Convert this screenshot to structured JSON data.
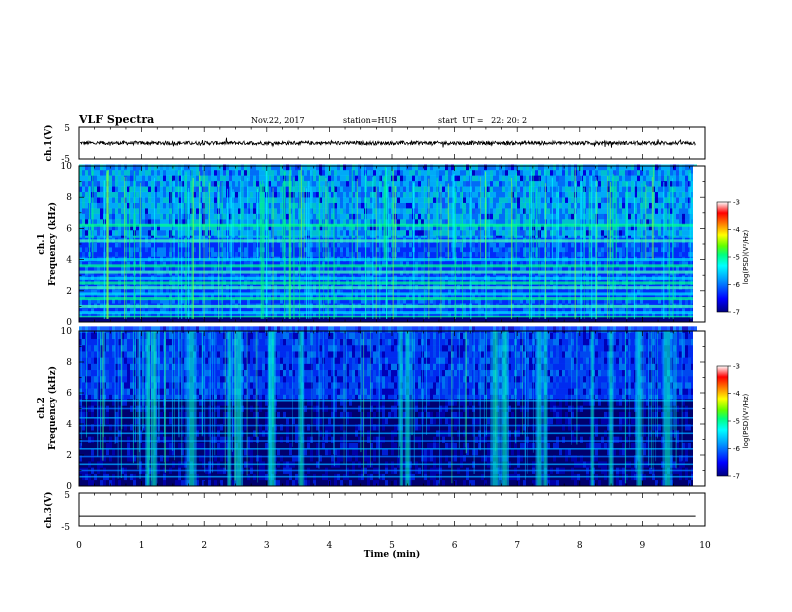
{
  "header": {
    "title": "VLF Spectra",
    "date": "Nov.22, 2017",
    "station": "station=HUS",
    "start": "start  UT =   22: 20: 2"
  },
  "chart_data": {
    "type": "heatmap",
    "x_axis": {
      "label": "Time  (min)",
      "range": [
        0,
        10
      ],
      "ticks": [
        0,
        1,
        2,
        3,
        4,
        5,
        6,
        7,
        8,
        9,
        10
      ],
      "data_end": 9.85
    },
    "panels": [
      {
        "id": "ch1-waveform",
        "type": "line",
        "ylabel": "ch.1(V)",
        "ylim": [
          -5,
          5
        ],
        "yticks": [
          "5",
          "-5"
        ],
        "baseline": 0,
        "amplitude": 0.6
      },
      {
        "id": "ch1-spectrogram",
        "type": "heatmap",
        "ylabel_top": "ch.1",
        "ylabel": "Frequency  (kHz)",
        "ylim": [
          0,
          10
        ],
        "yticks": [
          "0",
          "2",
          "4",
          "6",
          "8",
          "10"
        ],
        "colorbar": {
          "label": "log(PSD)(V²/Hz)",
          "range": [
            -7,
            -3
          ],
          "ticks": [
            "-3",
            "-4",
            "-5",
            "-6",
            "-7"
          ]
        }
      },
      {
        "id": "ch2-spectrogram",
        "type": "heatmap",
        "ylabel_top": "ch.2",
        "ylabel": "Frequency  (kHz)",
        "ylim": [
          0,
          10
        ],
        "yticks": [
          "0",
          "2",
          "4",
          "6",
          "8",
          "10"
        ],
        "colorbar": {
          "label": "log(PSD)(V²/Hz)",
          "range": [
            -7,
            -3
          ],
          "ticks": [
            "-3",
            "-4",
            "-5",
            "-6",
            "-7"
          ]
        }
      },
      {
        "id": "ch3-waveform",
        "type": "line",
        "ylabel": "ch.3(V)",
        "ylim": [
          -5,
          5
        ],
        "yticks": [
          "5",
          "-5"
        ],
        "baseline": -2
      }
    ],
    "ch1_bands_khz": [
      0.3,
      0.6,
      1.0,
      1.5,
      1.8,
      2.2,
      2.5,
      2.8,
      3.2,
      3.6,
      4.0,
      5.2,
      6.2
    ],
    "ch2_bands_khz": [
      0.6,
      1.0,
      1.4,
      1.9,
      2.4,
      2.9,
      3.4,
      3.9,
      4.4,
      5.0,
      5.5
    ],
    "ch2_bursts_min": [
      1.1,
      1.2,
      1.8,
      2.4,
      2.55,
      3.05,
      3.1,
      3.55,
      5.15,
      5.25,
      6.65,
      6.8,
      7.35,
      7.45,
      8.2,
      8.5,
      8.95,
      9.4
    ],
    "colors": {
      "colormap": [
        "#000080",
        "#0000ff",
        "#0080ff",
        "#00ffff",
        "#00ff80",
        "#80ff00",
        "#ffff00",
        "#ff8000",
        "#ff0000",
        "#ffffff"
      ],
      "line": "#000000"
    }
  }
}
